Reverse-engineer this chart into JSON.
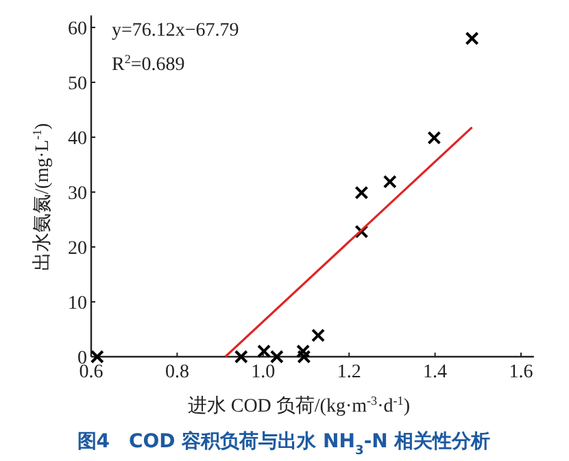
{
  "chart_data": {
    "type": "scatter",
    "xlabel": "进水 COD 负荷/(kg·m$^{-3}$·d$^{-1}$)",
    "ylabel": "出水氨氮/(mg·L$^{-1}$)",
    "annotations": [
      "y=76.12x−67.79",
      "R$^{2}$=0.689",
      "图4　COD 容积负荷与出水 NH$_{3}$-N 相关性分析"
    ],
    "xlim": [
      0.6,
      1.63
    ],
    "ylim": [
      0,
      62.2
    ],
    "xticks": [
      0.6,
      0.8,
      {
        "value": 1,
        "label": "1.0"
      },
      1.2,
      1.4,
      1.6
    ],
    "yticks": [
      0,
      10,
      20,
      30,
      40,
      50,
      60
    ],
    "series": [
      {
        "marker": "cross",
        "color": "#000000",
        "x": [
          0.614,
          0.949,
          1.002,
          1.032,
          1.093,
          1.095,
          1.128,
          1.229,
          1.229,
          1.295,
          1.398,
          1.486
        ],
        "values": [
          0,
          0,
          1,
          0,
          1,
          0,
          3.9,
          29.9,
          22.8,
          31.9,
          39.9,
          58.0
        ]
      },
      {
        "type": "line",
        "color": "#e02424",
        "x": [
          0.912,
          1.486
        ],
        "values": [
          0,
          41.8
        ]
      }
    ]
  }
}
